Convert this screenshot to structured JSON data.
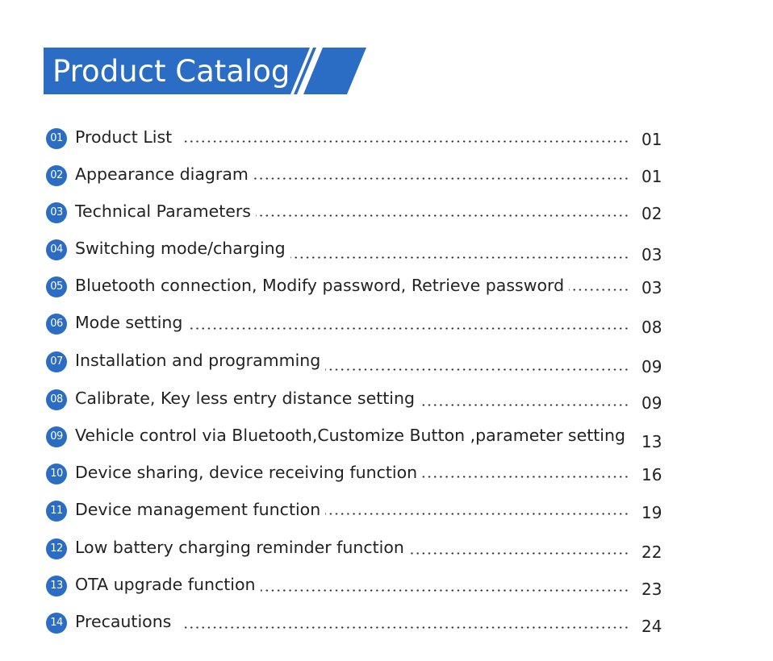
{
  "header": {
    "title": "Product Catalog",
    "bar_color": "#2b6cc4"
  },
  "toc": {
    "entries": [
      {
        "num": "01",
        "title": "Product List",
        "page": "01"
      },
      {
        "num": "02",
        "title": "Appearance diagram",
        "page": "01"
      },
      {
        "num": "03",
        "title": "Technical Parameters",
        "page": "02"
      },
      {
        "num": "04",
        "title": "Switching mode/charging",
        "page": "03"
      },
      {
        "num": "05",
        "title": "Bluetooth connection, Modify password, Retrieve password",
        "page": "03"
      },
      {
        "num": "06",
        "title": "Mode setting",
        "page": "08"
      },
      {
        "num": "07",
        "title": "Installation and programming",
        "page": "09"
      },
      {
        "num": "08",
        "title": "Calibrate, Key less entry distance setting",
        "page": "09"
      },
      {
        "num": "09",
        "title": "Vehicle control via Bluetooth,Customize Button ,parameter setting",
        "page": "13"
      },
      {
        "num": "10",
        "title": "Device sharing, device receiving function",
        "page": "16"
      },
      {
        "num": "11",
        "title": "Device management function",
        "page": "19"
      },
      {
        "num": "12",
        "title": "Low battery charging reminder function",
        "page": "22"
      },
      {
        "num": "13",
        "title": "OTA upgrade function",
        "page": "23"
      },
      {
        "num": "14",
        "title": "Precautions",
        "page": "24"
      }
    ]
  }
}
